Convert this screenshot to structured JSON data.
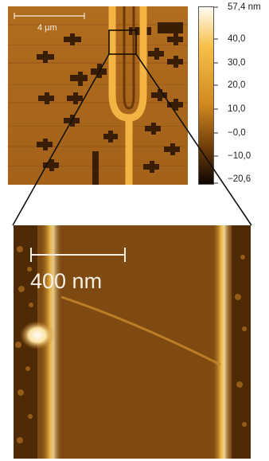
{
  "top_image": {
    "scale_bar_label": "4 µm"
  },
  "colorbar": {
    "unit_label": "57,4 nm",
    "ticks": [
      "40,0",
      "30,0",
      "20,0",
      "10,0",
      "−0,0",
      "−10,0",
      "−20,6"
    ],
    "colors": {
      "top": "#fffdf5",
      "upper": "#f7c14a",
      "mid": "#d28820",
      "lower": "#6b3a08",
      "bottom": "#0d0602"
    }
  },
  "bottom_image": {
    "scale_bar_label": "400 nm"
  }
}
